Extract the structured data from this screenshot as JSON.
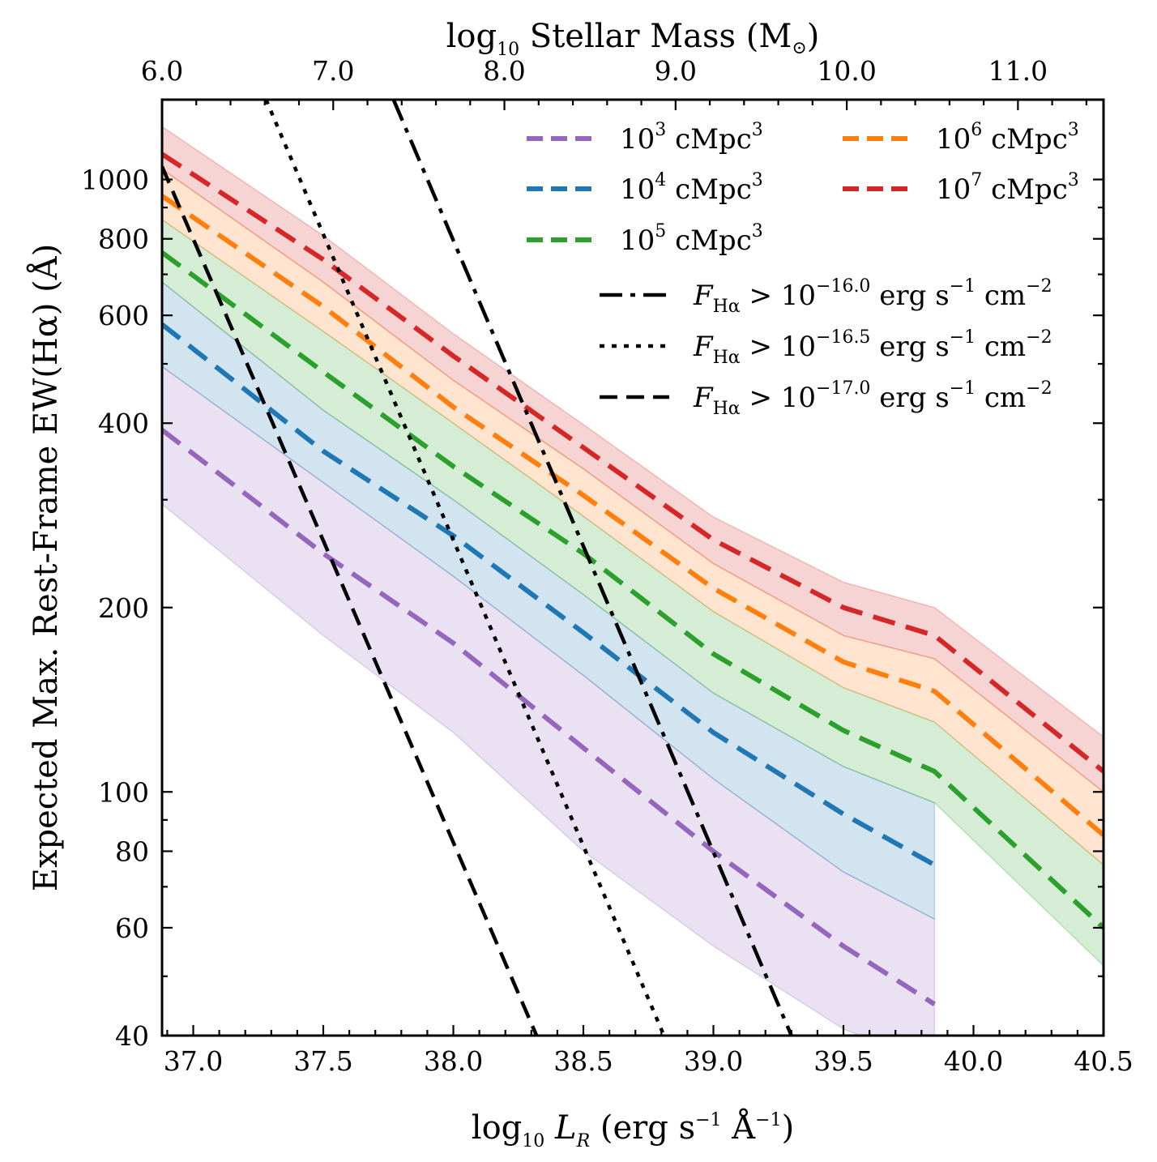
{
  "chart_data": {
    "type": "line",
    "title": "",
    "xlabel": "log10 L_R (erg s^-1 Å^-1)",
    "xlabel_parts": {
      "pre": "log",
      "sub": "10",
      "var": "L",
      "var_sub": "R",
      "post1": " (erg s",
      "sup1": "−1",
      "post2": " Å",
      "sup2": "−1",
      "post3": ")"
    },
    "ylabel": "Expected Max. Rest-Frame EW(Hα) (Å)",
    "top_xlabel": "log10 Stellar Mass (M⊙)",
    "top_xlabel_parts": {
      "pre": "log",
      "sub": "10",
      "post": " Stellar Mass (M",
      "sym": "⊙",
      "post2": ")"
    },
    "xlim": [
      36.88,
      40.5
    ],
    "ylim": [
      40,
      1350
    ],
    "yscale": "log",
    "x_ticks": [
      "37.0",
      "37.5",
      "38.0",
      "38.5",
      "39.0",
      "39.5",
      "40.0",
      "40.5"
    ],
    "x_tick_values": [
      37.0,
      37.5,
      38.0,
      38.5,
      39.0,
      39.5,
      40.0,
      40.5
    ],
    "y_ticks": [
      "40",
      "60",
      "80",
      "100",
      "200",
      "400",
      "600",
      "800",
      "1000"
    ],
    "y_tick_values": [
      40,
      60,
      80,
      100,
      200,
      400,
      600,
      800,
      1000
    ],
    "top_ticks": [
      "6.0",
      "7.0",
      "8.0",
      "9.0",
      "10.0",
      "11.0"
    ],
    "top_tick_values": [
      6.0,
      7.0,
      8.0,
      9.0,
      10.0,
      11.0
    ],
    "top_axis_mapping": {
      "mass_at_left": 6.0,
      "mass_at_right": 11.5
    },
    "series": [
      {
        "name": "10^3 cMpc^3",
        "label_base": "10",
        "label_exp": "3",
        "label_unit": " cMpc",
        "label_unit_exp": "3",
        "color": "#9467bd",
        "x": [
          36.88,
          37.5,
          38.0,
          38.5,
          39.0,
          39.5,
          39.85
        ],
        "y": [
          390,
          245,
          175,
          118,
          80,
          56,
          45
        ],
        "lower": [
          295,
          180,
          125,
          80,
          56,
          41,
          36
        ],
        "upper": [
          495,
          320,
          225,
          155,
          105,
          74,
          62
        ]
      },
      {
        "name": "10^4 cMpc^3",
        "label_base": "10",
        "label_exp": "4",
        "label_unit": " cMpc",
        "label_unit_exp": "3",
        "color": "#1f77b4",
        "x": [
          36.88,
          37.5,
          38.0,
          38.5,
          39.0,
          39.5,
          39.85
        ],
        "y": [
          580,
          360,
          262,
          182,
          125,
          92,
          76
        ],
        "lower": [
          495,
          320,
          225,
          155,
          105,
          74,
          62
        ],
        "upper": [
          680,
          420,
          300,
          210,
          145,
          110,
          96
        ]
      },
      {
        "name": "10^5 cMpc^3",
        "label_base": "10",
        "label_exp": "5",
        "label_unit": " cMpc",
        "label_unit_exp": "3",
        "color": "#2ca02c",
        "x": [
          36.88,
          37.5,
          38.0,
          38.5,
          39.0,
          39.5,
          39.85,
          40.5
        ],
        "y": [
          760,
          485,
          340,
          245,
          168,
          126,
          108,
          60
        ],
        "lower": [
          680,
          420,
          300,
          210,
          145,
          110,
          96,
          52
        ],
        "upper": [
          860,
          565,
          400,
          282,
          197,
          148,
          130,
          76
        ]
      },
      {
        "name": "10^6 cMpc^3",
        "label_base": "10",
        "label_exp": "6",
        "label_unit": " cMpc",
        "label_unit_exp": "3",
        "color": "#ff7f0e",
        "x": [
          36.88,
          37.5,
          38.0,
          38.5,
          39.0,
          39.5,
          39.85,
          40.5
        ],
        "y": [
          940,
          620,
          425,
          305,
          215,
          163,
          146,
          85
        ],
        "lower": [
          860,
          565,
          400,
          282,
          197,
          148,
          130,
          76
        ],
        "upper": [
          1040,
          680,
          470,
          337,
          236,
          180,
          165,
          100
        ]
      },
      {
        "name": "10^7 cMpc^3",
        "label_base": "10",
        "label_exp": "7",
        "label_unit": " cMpc",
        "label_unit_exp": "3",
        "color": "#d62728",
        "x": [
          36.88,
          37.5,
          38.0,
          38.5,
          39.0,
          39.5,
          39.85,
          40.5
        ],
        "y": [
          1100,
          740,
          515,
          365,
          258,
          200,
          180,
          108
        ],
        "lower": [
          1040,
          680,
          470,
          337,
          236,
          180,
          165,
          100
        ],
        "upper": [
          1220,
          810,
          560,
          398,
          281,
          220,
          200,
          123
        ]
      }
    ],
    "flux_limits": [
      {
        "name": "F_Hα > 10^-16.0 erg s^-1 cm^-2",
        "exp": "−16.0",
        "style": "dashdot",
        "x": [
          37.77,
          39.3
        ],
        "y": [
          1350,
          40
        ]
      },
      {
        "name": "F_Hα > 10^-16.5 erg s^-1 cm^-2",
        "exp": "−16.5",
        "style": "dotted",
        "x": [
          37.28,
          38.81
        ],
        "y": [
          1350,
          40
        ]
      },
      {
        "name": "F_Hα > 10^-17.0 erg s^-1 cm^-2",
        "exp": "−17.0",
        "style": "dashed",
        "x": [
          36.88,
          38.32
        ],
        "y": [
          1050,
          40
        ]
      }
    ],
    "flux_label_parts": {
      "var": "F",
      "var_sub": "Hα",
      "gt": " > 10",
      "post1": " erg s",
      "sup1": "−1",
      "post2": " cm",
      "sup2": "−2"
    },
    "legend_location": "top-right",
    "grid": false
  }
}
